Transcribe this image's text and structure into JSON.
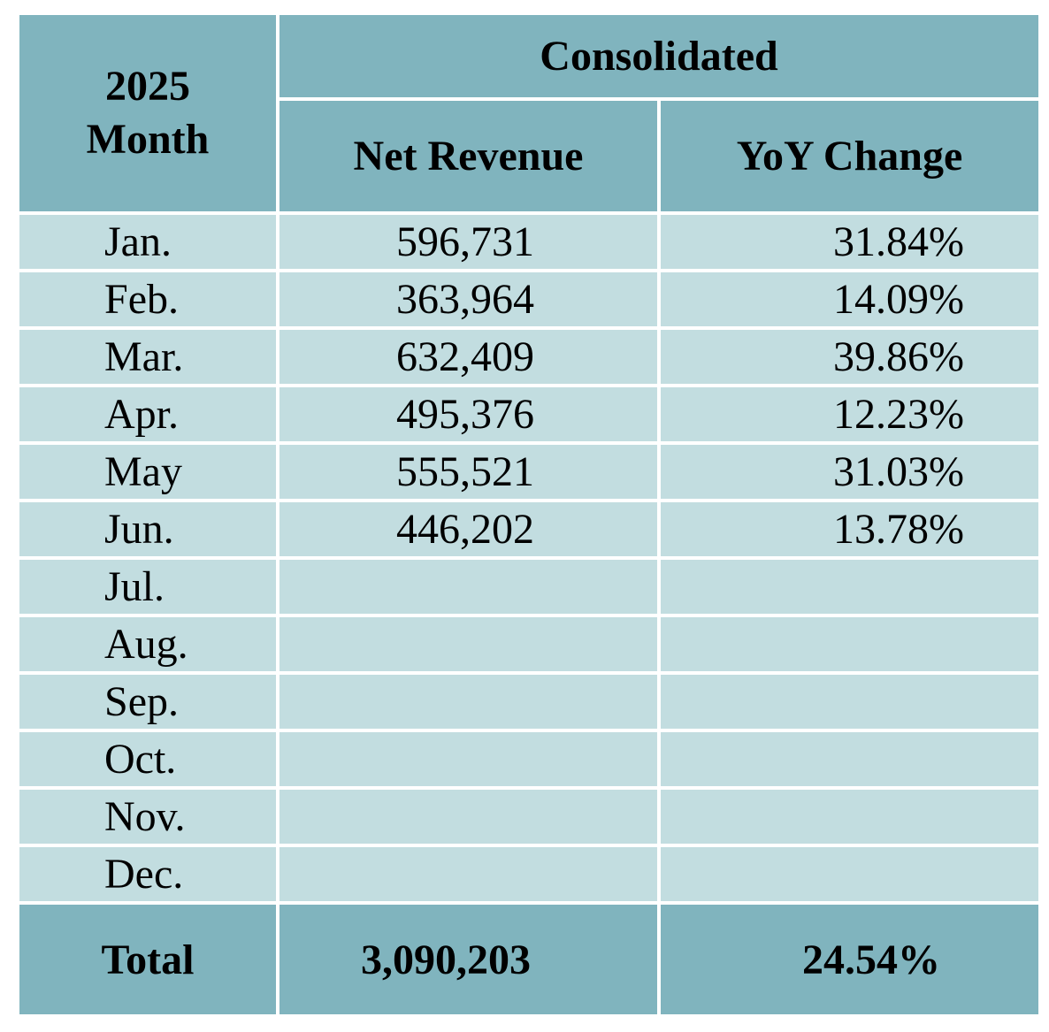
{
  "header": {
    "year": "2025",
    "month_label": "Month",
    "group_label": "Consolidated",
    "net_revenue_label": "Net Revenue",
    "yoy_label": "YoY Change"
  },
  "rows": [
    {
      "month": "Jan.",
      "net_revenue": "596,731",
      "yoy": "31.84%"
    },
    {
      "month": "Feb.",
      "net_revenue": "363,964",
      "yoy": "14.09%"
    },
    {
      "month": "Mar.",
      "net_revenue": "632,409",
      "yoy": "39.86%"
    },
    {
      "month": "Apr.",
      "net_revenue": "495,376",
      "yoy": "12.23%"
    },
    {
      "month": "May",
      "net_revenue": "555,521",
      "yoy": "31.03%"
    },
    {
      "month": "Jun.",
      "net_revenue": "446,202",
      "yoy": "13.78%"
    },
    {
      "month": "Jul.",
      "net_revenue": "",
      "yoy": ""
    },
    {
      "month": "Aug.",
      "net_revenue": "",
      "yoy": ""
    },
    {
      "month": "Sep.",
      "net_revenue": "",
      "yoy": ""
    },
    {
      "month": "Oct.",
      "net_revenue": "",
      "yoy": ""
    },
    {
      "month": "Nov.",
      "net_revenue": "",
      "yoy": ""
    },
    {
      "month": "Dec.",
      "net_revenue": "",
      "yoy": ""
    }
  ],
  "total": {
    "label": "Total",
    "net_revenue": "3,090,203",
    "yoy": "24.54%"
  },
  "colors": {
    "header_bg": "#80b4be",
    "row_bg": "#c2dde0",
    "grid_line": "#ffffff"
  }
}
